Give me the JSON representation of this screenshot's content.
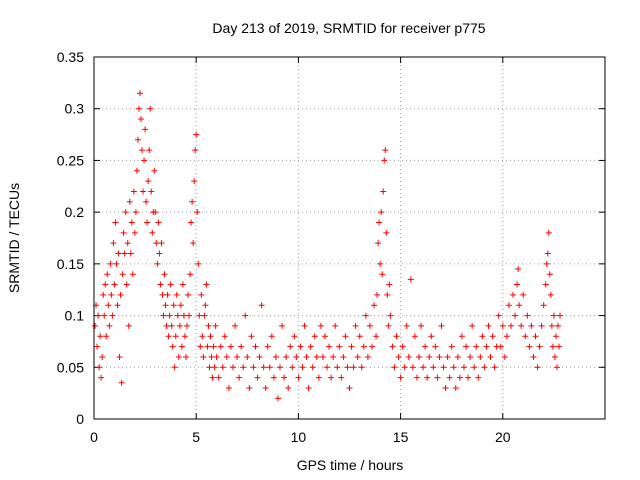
{
  "chart_data": {
    "type": "scatter",
    "title": "Day 213 of 2019, SRMTID for receiver p775",
    "xlabel": "GPS time / hours",
    "ylabel": "SRMTID / TECUs",
    "xlim": [
      0,
      25
    ],
    "ylim": [
      0,
      0.35
    ],
    "x_ticks": [
      0,
      5,
      10,
      15,
      20
    ],
    "x_tick_labels": [
      "0",
      "5",
      "10",
      "15",
      "20"
    ],
    "y_ticks": [
      0,
      0.05,
      0.1,
      0.15,
      0.2,
      0.25,
      0.3,
      0.35
    ],
    "y_tick_labels": [
      "0",
      "0.05",
      "0.1",
      "0.15",
      "0.2",
      "0.25",
      "0.3",
      "0.35"
    ],
    "grid": true,
    "marker": "plus",
    "color": "#ff0000",
    "series": [
      {
        "name": "SRMTID",
        "points": [
          [
            0.05,
            0.09
          ],
          [
            0.1,
            0.11
          ],
          [
            0.15,
            0.07
          ],
          [
            0.2,
            0.1
          ],
          [
            0.25,
            0.05
          ],
          [
            0.3,
            0.08
          ],
          [
            0.35,
            0.04
          ],
          [
            0.4,
            0.06
          ],
          [
            0.45,
            0.12
          ],
          [
            0.5,
            0.1
          ],
          [
            0.55,
            0.13
          ],
          [
            0.6,
            0.08
          ],
          [
            0.65,
            0.14
          ],
          [
            0.7,
            0.11
          ],
          [
            0.75,
            0.09
          ],
          [
            0.8,
            0.15
          ],
          [
            0.85,
            0.12
          ],
          [
            0.9,
            0.1
          ],
          [
            0.95,
            0.17
          ],
          [
            1.0,
            0.13
          ],
          [
            1.05,
            0.19
          ],
          [
            1.1,
            0.15
          ],
          [
            1.15,
            0.11
          ],
          [
            1.2,
            0.16
          ],
          [
            1.25,
            0.06
          ],
          [
            1.3,
            0.12
          ],
          [
            1.35,
            0.035
          ],
          [
            1.4,
            0.14
          ],
          [
            1.45,
            0.18
          ],
          [
            1.5,
            0.16
          ],
          [
            1.55,
            0.2
          ],
          [
            1.6,
            0.13
          ],
          [
            1.65,
            0.17
          ],
          [
            1.7,
            0.09
          ],
          [
            1.75,
            0.21
          ],
          [
            1.8,
            0.16
          ],
          [
            1.85,
            0.19
          ],
          [
            1.9,
            0.14
          ],
          [
            1.95,
            0.22
          ],
          [
            2.0,
            0.18
          ],
          [
            2.05,
            0.2
          ],
          [
            2.1,
            0.24
          ],
          [
            2.15,
            0.27
          ],
          [
            2.2,
            0.3
          ],
          [
            2.25,
            0.315
          ],
          [
            2.3,
            0.29
          ],
          [
            2.35,
            0.26
          ],
          [
            2.4,
            0.22
          ],
          [
            2.45,
            0.25
          ],
          [
            2.5,
            0.28
          ],
          [
            2.55,
            0.21
          ],
          [
            2.6,
            0.19
          ],
          [
            2.65,
            0.23
          ],
          [
            2.7,
            0.26
          ],
          [
            2.75,
            0.3
          ],
          [
            2.8,
            0.22
          ],
          [
            2.85,
            0.18
          ],
          [
            2.9,
            0.2
          ],
          [
            2.95,
            0.24
          ],
          [
            3.0,
            0.2
          ],
          [
            3.05,
            0.17
          ],
          [
            3.1,
            0.15
          ],
          [
            3.15,
            0.19
          ],
          [
            3.2,
            0.16
          ],
          [
            3.25,
            0.13
          ],
          [
            3.3,
            0.17
          ],
          [
            3.35,
            0.12
          ],
          [
            3.4,
            0.1
          ],
          [
            3.45,
            0.14
          ],
          [
            3.5,
            0.11
          ],
          [
            3.55,
            0.09
          ],
          [
            3.6,
            0.12
          ],
          [
            3.65,
            0.08
          ],
          [
            3.7,
            0.1
          ],
          [
            3.75,
            0.13
          ],
          [
            3.8,
            0.09
          ],
          [
            3.85,
            0.07
          ],
          [
            3.9,
            0.11
          ],
          [
            3.95,
            0.05
          ],
          [
            4.0,
            0.08
          ],
          [
            4.05,
            0.12
          ],
          [
            4.1,
            0.1
          ],
          [
            4.15,
            0.06
          ],
          [
            4.2,
            0.09
          ],
          [
            4.25,
            0.11
          ],
          [
            4.3,
            0.07
          ],
          [
            4.35,
            0.13
          ],
          [
            4.4,
            0.1
          ],
          [
            4.45,
            0.08
          ],
          [
            4.5,
            0.06
          ],
          [
            4.55,
            0.09
          ],
          [
            4.6,
            0.12
          ],
          [
            4.65,
            0.1
          ],
          [
            4.7,
            0.14
          ],
          [
            4.75,
            0.19
          ],
          [
            4.8,
            0.21
          ],
          [
            4.85,
            0.17
          ],
          [
            4.9,
            0.23
          ],
          [
            4.95,
            0.26
          ],
          [
            5.0,
            0.275
          ],
          [
            5.05,
            0.2
          ],
          [
            5.1,
            0.15
          ],
          [
            5.15,
            0.1
          ],
          [
            5.2,
            0.07
          ],
          [
            5.25,
            0.12
          ],
          [
            5.3,
            0.08
          ],
          [
            5.35,
            0.06
          ],
          [
            5.4,
            0.1
          ],
          [
            5.45,
            0.11
          ],
          [
            5.5,
            0.13
          ],
          [
            5.55,
            0.07
          ],
          [
            5.6,
            0.09
          ],
          [
            5.65,
            0.05
          ],
          [
            5.7,
            0.08
          ],
          [
            5.75,
            0.06
          ],
          [
            5.8,
            0.04
          ],
          [
            5.85,
            0.07
          ],
          [
            5.9,
            0.05
          ],
          [
            5.95,
            0.09
          ],
          [
            6.0,
            0.06
          ],
          [
            6.1,
            0.04
          ],
          [
            6.2,
            0.07
          ],
          [
            6.3,
            0.05
          ],
          [
            6.4,
            0.08
          ],
          [
            6.5,
            0.06
          ],
          [
            6.6,
            0.03
          ],
          [
            6.7,
            0.07
          ],
          [
            6.8,
            0.05
          ],
          [
            6.9,
            0.09
          ],
          [
            7.0,
            0.06
          ],
          [
            7.1,
            0.04
          ],
          [
            7.2,
            0.07
          ],
          [
            7.3,
            0.05
          ],
          [
            7.4,
            0.1
          ],
          [
            7.5,
            0.06
          ],
          [
            7.6,
            0.03
          ],
          [
            7.7,
            0.08
          ],
          [
            7.8,
            0.05
          ],
          [
            7.9,
            0.07
          ],
          [
            8.0,
            0.04
          ],
          [
            8.1,
            0.06
          ],
          [
            8.2,
            0.11
          ],
          [
            8.3,
            0.05
          ],
          [
            8.4,
            0.03
          ],
          [
            8.5,
            0.07
          ],
          [
            8.6,
            0.05
          ],
          [
            8.7,
            0.08
          ],
          [
            8.8,
            0.04
          ],
          [
            8.9,
            0.06
          ],
          [
            9.0,
            0.02
          ],
          [
            9.1,
            0.05
          ],
          [
            9.2,
            0.09
          ],
          [
            9.3,
            0.04
          ],
          [
            9.4,
            0.06
          ],
          [
            9.5,
            0.03
          ],
          [
            9.6,
            0.07
          ],
          [
            9.7,
            0.05
          ],
          [
            9.8,
            0.08
          ],
          [
            9.9,
            0.06
          ],
          [
            10.0,
            0.04
          ],
          [
            10.1,
            0.07
          ],
          [
            10.2,
            0.05
          ],
          [
            10.3,
            0.09
          ],
          [
            10.4,
            0.06
          ],
          [
            10.5,
            0.03
          ],
          [
            10.6,
            0.07
          ],
          [
            10.7,
            0.05
          ],
          [
            10.8,
            0.08
          ],
          [
            10.9,
            0.06
          ],
          [
            11.0,
            0.04
          ],
          [
            11.1,
            0.09
          ],
          [
            11.2,
            0.06
          ],
          [
            11.3,
            0.08
          ],
          [
            11.4,
            0.05
          ],
          [
            11.5,
            0.07
          ],
          [
            11.6,
            0.04
          ],
          [
            11.7,
            0.06
          ],
          [
            11.8,
            0.09
          ],
          [
            11.9,
            0.05
          ],
          [
            12.0,
            0.07
          ],
          [
            12.1,
            0.04
          ],
          [
            12.2,
            0.06
          ],
          [
            12.3,
            0.08
          ],
          [
            12.4,
            0.05
          ],
          [
            12.5,
            0.03
          ],
          [
            12.6,
            0.07
          ],
          [
            12.7,
            0.05
          ],
          [
            12.8,
            0.09
          ],
          [
            12.9,
            0.06
          ],
          [
            13.0,
            0.08
          ],
          [
            13.1,
            0.05
          ],
          [
            13.2,
            0.07
          ],
          [
            13.3,
            0.1
          ],
          [
            13.4,
            0.06
          ],
          [
            13.5,
            0.09
          ],
          [
            13.6,
            0.07
          ],
          [
            13.7,
            0.11
          ],
          [
            13.8,
            0.08
          ],
          [
            13.85,
            0.12
          ],
          [
            13.9,
            0.17
          ],
          [
            13.95,
            0.19
          ],
          [
            14.0,
            0.15
          ],
          [
            14.05,
            0.2
          ],
          [
            14.1,
            0.14
          ],
          [
            14.15,
            0.22
          ],
          [
            14.2,
            0.25
          ],
          [
            14.25,
            0.26
          ],
          [
            14.3,
            0.18
          ],
          [
            14.35,
            0.12
          ],
          [
            14.4,
            0.09
          ],
          [
            14.45,
            0.13
          ],
          [
            14.5,
            0.1
          ],
          [
            14.6,
            0.07
          ],
          [
            14.7,
            0.05
          ],
          [
            14.8,
            0.08
          ],
          [
            14.9,
            0.06
          ],
          [
            15.0,
            0.04
          ],
          [
            15.1,
            0.07
          ],
          [
            15.2,
            0.05
          ],
          [
            15.3,
            0.09
          ],
          [
            15.4,
            0.06
          ],
          [
            15.5,
            0.135
          ],
          [
            15.6,
            0.05
          ],
          [
            15.7,
            0.08
          ],
          [
            15.8,
            0.04
          ],
          [
            15.9,
            0.06
          ],
          [
            16.0,
            0.09
          ],
          [
            16.1,
            0.05
          ],
          [
            16.2,
            0.07
          ],
          [
            16.3,
            0.04
          ],
          [
            16.4,
            0.06
          ],
          [
            16.5,
            0.08
          ],
          [
            16.6,
            0.05
          ],
          [
            16.7,
            0.07
          ],
          [
            16.8,
            0.04
          ],
          [
            16.9,
            0.06
          ],
          [
            17.0,
            0.09
          ],
          [
            17.1,
            0.05
          ],
          [
            17.2,
            0.03
          ],
          [
            17.3,
            0.06
          ],
          [
            17.4,
            0.04
          ],
          [
            17.5,
            0.07
          ],
          [
            17.6,
            0.05
          ],
          [
            17.7,
            0.03
          ],
          [
            17.8,
            0.06
          ],
          [
            17.9,
            0.04
          ],
          [
            18.0,
            0.08
          ],
          [
            18.1,
            0.05
          ],
          [
            18.2,
            0.07
          ],
          [
            18.3,
            0.04
          ],
          [
            18.4,
            0.06
          ],
          [
            18.5,
            0.09
          ],
          [
            18.6,
            0.05
          ],
          [
            18.7,
            0.07
          ],
          [
            18.8,
            0.04
          ],
          [
            18.9,
            0.06
          ],
          [
            19.0,
            0.08
          ],
          [
            19.1,
            0.05
          ],
          [
            19.2,
            0.07
          ],
          [
            19.3,
            0.09
          ],
          [
            19.4,
            0.06
          ],
          [
            19.5,
            0.08
          ],
          [
            19.6,
            0.05
          ],
          [
            19.7,
            0.07
          ],
          [
            19.8,
            0.1
          ],
          [
            19.9,
            0.07
          ],
          [
            20.0,
            0.09
          ],
          [
            20.1,
            0.06
          ],
          [
            20.2,
            0.08
          ],
          [
            20.3,
            0.11
          ],
          [
            20.4,
            0.09
          ],
          [
            20.5,
            0.12
          ],
          [
            20.6,
            0.1
          ],
          [
            20.7,
            0.13
          ],
          [
            20.75,
            0.145
          ],
          [
            20.8,
            0.11
          ],
          [
            20.9,
            0.09
          ],
          [
            21.0,
            0.12
          ],
          [
            21.1,
            0.08
          ],
          [
            21.2,
            0.1
          ],
          [
            21.3,
            0.07
          ],
          [
            21.4,
            0.09
          ],
          [
            21.5,
            0.06
          ],
          [
            21.6,
            0.08
          ],
          [
            21.7,
            0.05
          ],
          [
            21.8,
            0.07
          ],
          [
            21.9,
            0.09
          ],
          [
            22.0,
            0.11
          ],
          [
            22.1,
            0.13
          ],
          [
            22.15,
            0.15
          ],
          [
            22.2,
            0.16
          ],
          [
            22.25,
            0.18
          ],
          [
            22.3,
            0.14
          ],
          [
            22.35,
            0.12
          ],
          [
            22.4,
            0.09
          ],
          [
            22.45,
            0.07
          ],
          [
            22.5,
            0.1
          ],
          [
            22.55,
            0.06
          ],
          [
            22.6,
            0.08
          ],
          [
            22.65,
            0.05
          ],
          [
            22.7,
            0.09
          ],
          [
            22.75,
            0.07
          ],
          [
            22.8,
            0.1
          ]
        ]
      }
    ]
  }
}
